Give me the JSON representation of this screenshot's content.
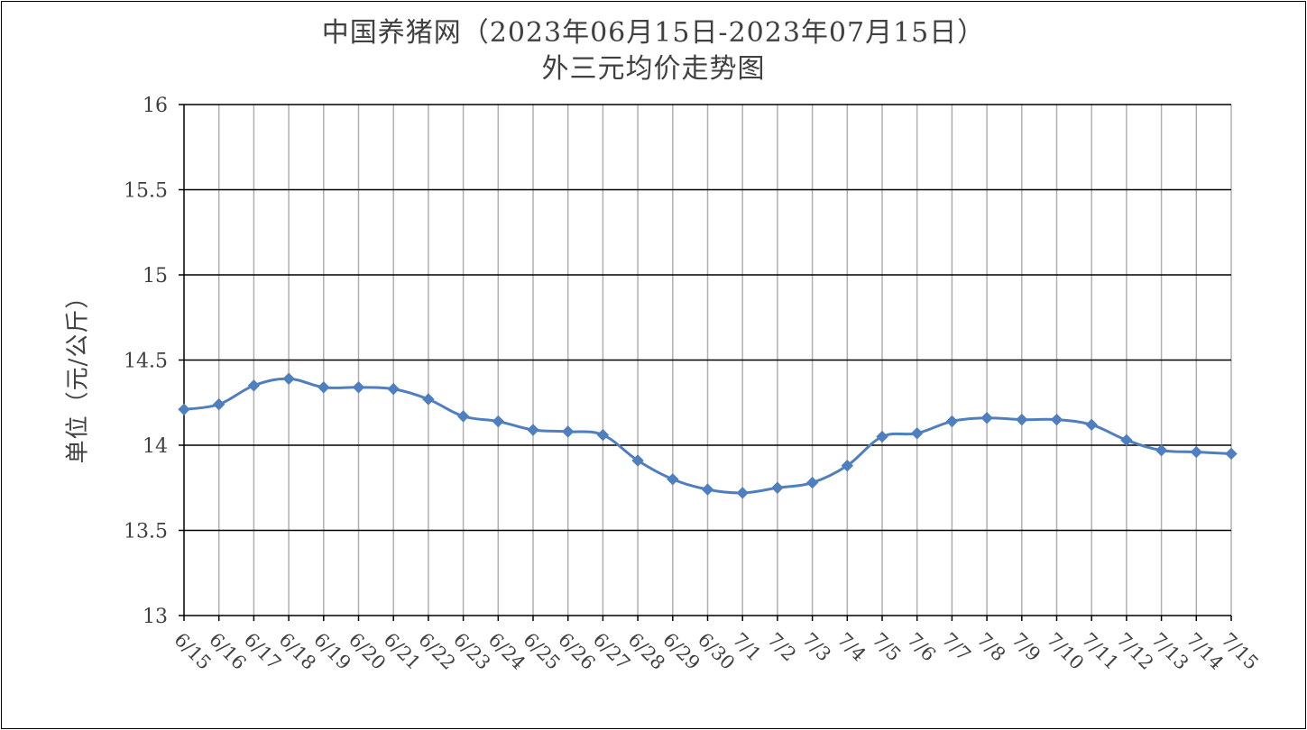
{
  "chart_data": {
    "type": "line",
    "title": "中国养猪网（2023年06月15日-2023年07月15日）",
    "subtitle": "外三元均价走势图",
    "xlabel": "",
    "ylabel": "单位（元/公斤）",
    "ylim": [
      13,
      16
    ],
    "yticks": [
      13,
      13.5,
      14,
      14.5,
      15,
      15.5,
      16
    ],
    "ytick_labels": [
      "13",
      "13.5",
      "14",
      "14.5",
      "15",
      "15.5",
      "16"
    ],
    "grid": true,
    "legend": "none",
    "series_color": "#4F7FBF",
    "categories": [
      "6/15",
      "6/16",
      "6/17",
      "6/18",
      "6/19",
      "6/20",
      "6/21",
      "6/22",
      "6/23",
      "6/24",
      "6/25",
      "6/26",
      "6/27",
      "6/28",
      "6/29",
      "6/30",
      "7/1",
      "7/2",
      "7/3",
      "7/4",
      "7/5",
      "7/6",
      "7/7",
      "7/8",
      "7/9",
      "7/10",
      "7/11",
      "7/12",
      "7/13",
      "7/14",
      "7/15"
    ],
    "series": [
      {
        "values": [
          14.21,
          14.24,
          14.35,
          14.39,
          14.34,
          14.34,
          14.33,
          14.27,
          14.17,
          14.14,
          14.09,
          14.08,
          14.06,
          13.91,
          13.8,
          13.74,
          13.72,
          13.75,
          13.78,
          13.88,
          14.05,
          14.07,
          14.14,
          14.16,
          14.15,
          14.15,
          14.12,
          14.03,
          13.97,
          13.96,
          13.95
        ]
      }
    ]
  }
}
